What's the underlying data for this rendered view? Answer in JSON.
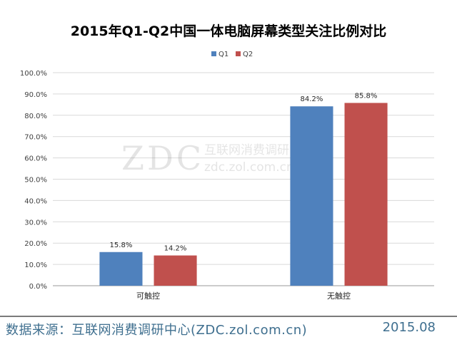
{
  "chart_data": {
    "type": "bar",
    "title": "2015年Q1-Q2中国一体电脑屏幕类型关注比例对比",
    "categories": [
      "可触控",
      "无触控"
    ],
    "series": [
      {
        "name": "Q1",
        "values": [
          15.8,
          84.2
        ],
        "color": "#4f81bd"
      },
      {
        "name": "Q2",
        "values": [
          14.2,
          85.8
        ],
        "color": "#c0504d"
      }
    ],
    "data_labels": [
      [
        "15.8%",
        "84.2%"
      ],
      [
        "14.2%",
        "85.8%"
      ]
    ],
    "y_ticks": [
      "0.0%",
      "10.0%",
      "20.0%",
      "30.0%",
      "40.0%",
      "50.0%",
      "60.0%",
      "70.0%",
      "80.0%",
      "90.0%",
      "100.0%"
    ],
    "ylim": [
      0,
      100
    ],
    "grid": true,
    "legend_position": "top-center",
    "xlabel": "",
    "ylabel": ""
  },
  "watermark": {
    "logo": "ZDC",
    "text": "互联网消费调研中心",
    "url": "zdc.zol.com.cn"
  },
  "footer": {
    "source": "数据来源：互联网消费调研中心(ZDC.zol.com.cn)",
    "date": "2015.08"
  }
}
